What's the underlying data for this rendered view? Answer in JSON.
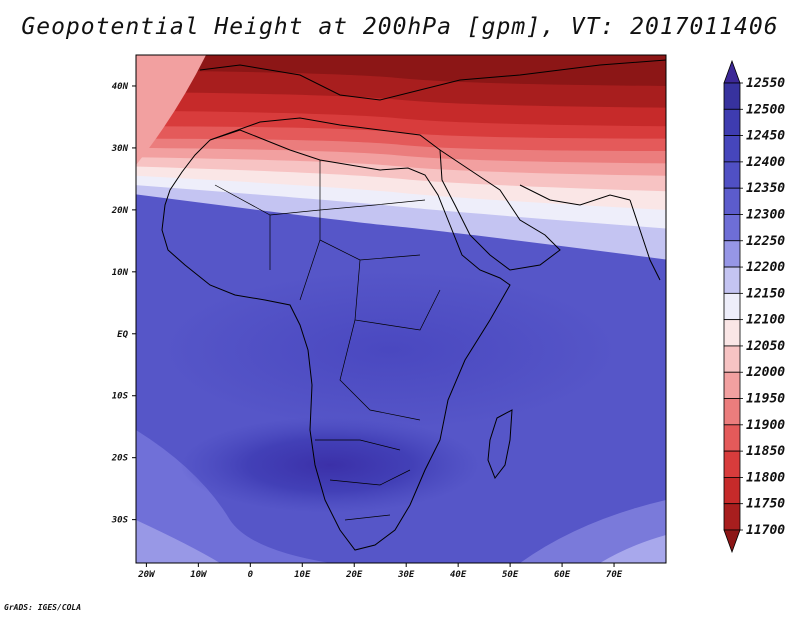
{
  "title": "Geopotential Height at 200hPa [gpm], VT: 2017011406",
  "credit": "GrADS: IGES/COLA",
  "lon_ticks": [
    "20W",
    "10W",
    "0",
    "10E",
    "20E",
    "30E",
    "40E",
    "50E",
    "60E",
    "70E"
  ],
  "lat_ticks": [
    "40N",
    "30N",
    "20N",
    "10N",
    "EQ",
    "10S",
    "20S",
    "30S"
  ],
  "colorbar": {
    "levels": [
      "12550",
      "12500",
      "12450",
      "12400",
      "12350",
      "12300",
      "12250",
      "12200",
      "12150",
      "12100",
      "12050",
      "12000",
      "11950",
      "11900",
      "11850",
      "11800",
      "11750",
      "11700"
    ],
    "colors": [
      "#3c2896",
      "#37329e",
      "#3e3cb0",
      "#4646bc",
      "#5050c4",
      "#5c5ccc",
      "#6e6ed6",
      "#9696e6",
      "#c4c4f2",
      "#eeeefa",
      "#fae6e6",
      "#f7c3c3",
      "#f2a0a0",
      "#eb7d7d",
      "#e45a5a",
      "#d83c3c",
      "#c62a2a",
      "#a81e1e",
      "#8c1616"
    ]
  },
  "chart_data": {
    "type": "heatmap",
    "title": "Geopotential Height at 200hPa [gpm], VT: 2017011406",
    "variable": "Geopotential Height at 200hPa",
    "units": "gpm",
    "valid_time": "2017011406",
    "lon_range": [
      -22,
      80
    ],
    "lat_range": [
      -37,
      45
    ],
    "contour_levels": [
      11700,
      11750,
      11800,
      11850,
      11900,
      11950,
      12000,
      12050,
      12100,
      12150,
      12200,
      12250,
      12300,
      12350,
      12400,
      12450,
      12500,
      12550
    ],
    "features": [
      {
        "label": "low heights (red) over Mediterranean / North Africa",
        "approx_value": 11700
      },
      {
        "label": "gradient zone near 20N-25N",
        "approx_value": 12125
      },
      {
        "label": "high heights over southern Africa near 20S",
        "approx_value": 12450
      }
    ]
  }
}
